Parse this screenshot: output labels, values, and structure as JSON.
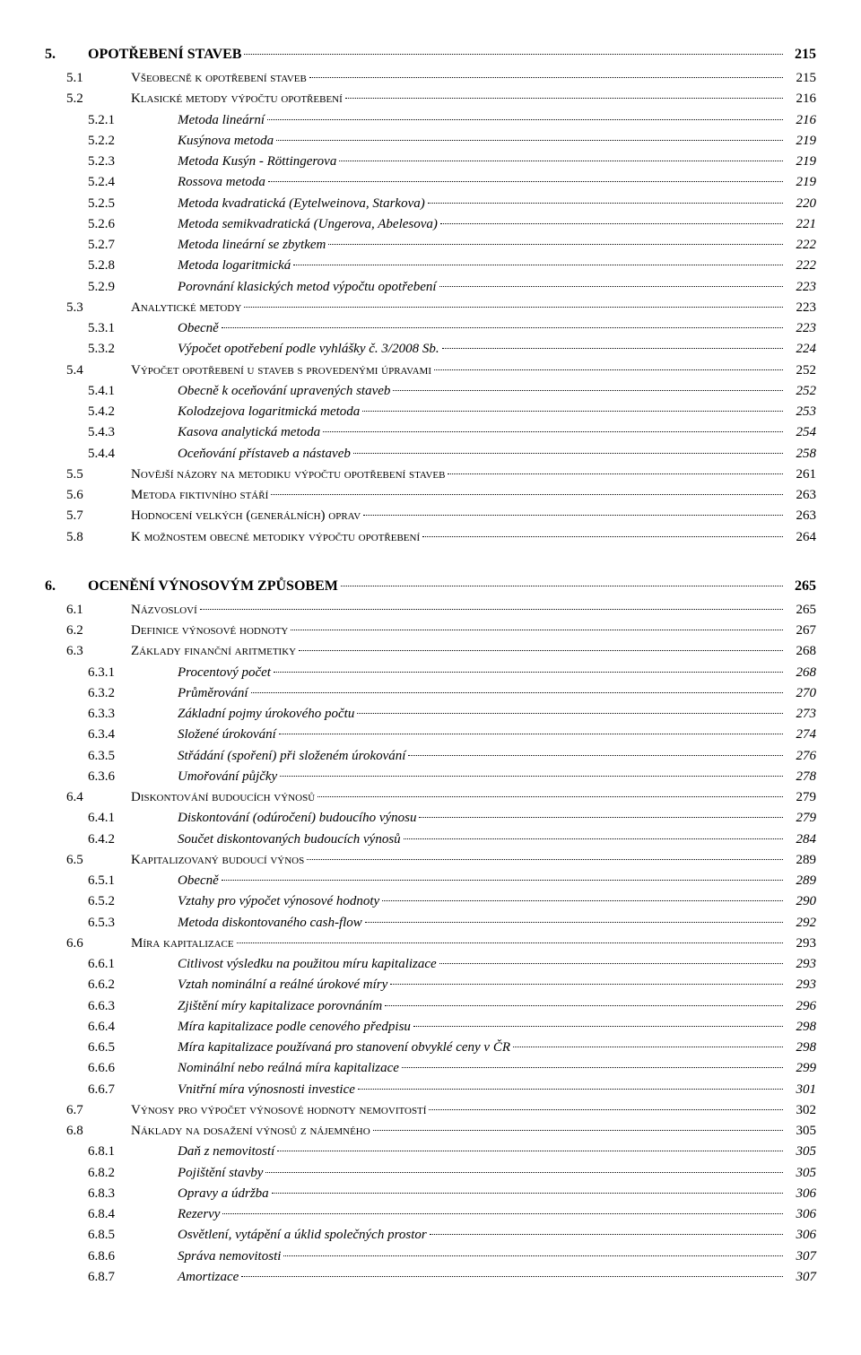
{
  "chapters": [
    {
      "num": "5.",
      "title": "OPOTŘEBENÍ STAVEB",
      "page": "215",
      "sections": [
        {
          "num": "5.1",
          "title": "Všeobecně k opotřebení staveb",
          "page": "215",
          "subs": []
        },
        {
          "num": "5.2",
          "title": "Klasické metody výpočtu opotřebení",
          "page": "216",
          "subs": [
            {
              "num": "5.2.1",
              "title": "Metoda lineární",
              "page": "216"
            },
            {
              "num": "5.2.2",
              "title": "Kusýnova metoda",
              "page": "219"
            },
            {
              "num": "5.2.3",
              "title": "Metoda Kusýn - Röttingerova",
              "page": "219"
            },
            {
              "num": "5.2.4",
              "title": "Rossova metoda",
              "page": "219"
            },
            {
              "num": "5.2.5",
              "title": "Metoda kvadratická (Eytelweinova, Starkova)",
              "page": "220"
            },
            {
              "num": "5.2.6",
              "title": "Metoda semikvadratická (Ungerova, Abelesova)",
              "page": "221"
            },
            {
              "num": "5.2.7",
              "title": "Metoda lineární se zbytkem",
              "page": "222"
            },
            {
              "num": "5.2.8",
              "title": "Metoda logaritmická",
              "page": "222"
            },
            {
              "num": "5.2.9",
              "title": "Porovnání klasických metod výpočtu opotřebení",
              "page": "223"
            }
          ]
        },
        {
          "num": "5.3",
          "title": "Analytické metody",
          "page": "223",
          "subs": [
            {
              "num": "5.3.1",
              "title": "Obecně",
              "page": "223"
            },
            {
              "num": "5.3.2",
              "title": "Výpočet opotřebení podle vyhlášky č. 3/2008 Sb.",
              "page": "224"
            }
          ]
        },
        {
          "num": "5.4",
          "title": "Výpočet opotřebení u staveb s provedenými úpravami",
          "page": "252",
          "subs": [
            {
              "num": "5.4.1",
              "title": "Obecně k oceňování upravených staveb",
              "page": "252"
            },
            {
              "num": "5.4.2",
              "title": "Kolodzejova logaritmická metoda",
              "page": "253"
            },
            {
              "num": "5.4.3",
              "title": "Kasova analytická metoda",
              "page": "254"
            },
            {
              "num": "5.4.4",
              "title": "Oceňování přístaveb a nástaveb",
              "page": "258"
            }
          ]
        },
        {
          "num": "5.5",
          "title": "Novější názory na metodiku výpočtu opotřebení staveb",
          "page": "261",
          "subs": []
        },
        {
          "num": "5.6",
          "title": "Metoda fiktivního stáří",
          "page": "263",
          "subs": []
        },
        {
          "num": "5.7",
          "title": "Hodnocení velkých (generálních) oprav",
          "page": "263",
          "subs": []
        },
        {
          "num": "5.8",
          "title": "K možnostem obecné metodiky výpočtu opotřebení",
          "page": "264",
          "subs": []
        }
      ]
    },
    {
      "num": "6.",
      "title": "OCENĚNÍ VÝNOSOVÝM ZPŮSOBEM",
      "page": "265",
      "sections": [
        {
          "num": "6.1",
          "title": "Názvosloví",
          "page": "265",
          "subs": []
        },
        {
          "num": "6.2",
          "title": "Definice výnosové hodnoty",
          "page": "267",
          "subs": []
        },
        {
          "num": "6.3",
          "title": "Základy finanční aritmetiky",
          "page": "268",
          "subs": [
            {
              "num": "6.3.1",
              "title": "Procentový počet",
              "page": "268"
            },
            {
              "num": "6.3.2",
              "title": "Průměrování",
              "page": "270"
            },
            {
              "num": "6.3.3",
              "title": "Základní pojmy úrokového počtu",
              "page": "273"
            },
            {
              "num": "6.3.4",
              "title": "Složené úrokování",
              "page": "274"
            },
            {
              "num": "6.3.5",
              "title": "Střádání (spoření) při složeném úrokování",
              "page": "276"
            },
            {
              "num": "6.3.6",
              "title": "Umořování půjčky",
              "page": "278"
            }
          ]
        },
        {
          "num": "6.4",
          "title": "Diskontování budoucích výnosů",
          "page": "279",
          "subs": [
            {
              "num": "6.4.1",
              "title": "Diskontování (odúročení) budoucího výnosu",
              "page": "279"
            },
            {
              "num": "6.4.2",
              "title": "Součet diskontovaných budoucích výnosů",
              "page": "284"
            }
          ]
        },
        {
          "num": "6.5",
          "title": "Kapitalizovaný budoucí výnos",
          "page": "289",
          "subs": [
            {
              "num": "6.5.1",
              "title": "Obecně",
              "page": "289"
            },
            {
              "num": "6.5.2",
              "title": "Vztahy pro výpočet výnosové hodnoty",
              "page": "290"
            },
            {
              "num": "6.5.3",
              "title": "Metoda diskontovaného cash-flow",
              "page": "292"
            }
          ]
        },
        {
          "num": "6.6",
          "title": "Míra kapitalizace",
          "page": "293",
          "subs": [
            {
              "num": "6.6.1",
              "title": "Citlivost výsledku na použitou míru kapitalizace",
              "page": "293"
            },
            {
              "num": "6.6.2",
              "title": "Vztah nominální a reálné úrokové míry",
              "page": "293"
            },
            {
              "num": "6.6.3",
              "title": "Zjištění míry kapitalizace porovnáním",
              "page": "296"
            },
            {
              "num": "6.6.4",
              "title": "Míra kapitalizace podle cenového předpisu",
              "page": "298"
            },
            {
              "num": "6.6.5",
              "title": "Míra kapitalizace používaná pro stanovení obvyklé ceny v ČR",
              "page": "298"
            },
            {
              "num": "6.6.6",
              "title": "Nominální nebo reálná míra kapitalizace",
              "page": "299"
            },
            {
              "num": "6.6.7",
              "title": "Vnitřní míra výnosnosti investice",
              "page": "301"
            }
          ]
        },
        {
          "num": "6.7",
          "title": "Výnosy pro výpočet výnosové hodnoty nemovitostí",
          "page": "302",
          "subs": []
        },
        {
          "num": "6.8",
          "title": "Náklady na dosažení výnosů z nájemného",
          "page": "305",
          "subs": [
            {
              "num": "6.8.1",
              "title": "Daň z nemovitostí",
              "page": "305"
            },
            {
              "num": "6.8.2",
              "title": "Pojištění stavby",
              "page": "305"
            },
            {
              "num": "6.8.3",
              "title": "Opravy a údržba",
              "page": "306"
            },
            {
              "num": "6.8.4",
              "title": "Rezervy",
              "page": "306"
            },
            {
              "num": "6.8.5",
              "title": "Osvětlení, vytápění a úklid společných prostor",
              "page": "306"
            },
            {
              "num": "6.8.6",
              "title": "Správa nemovitosti",
              "page": "307"
            },
            {
              "num": "6.8.7",
              "title": "Amortizace",
              "page": "307"
            }
          ]
        }
      ]
    }
  ]
}
